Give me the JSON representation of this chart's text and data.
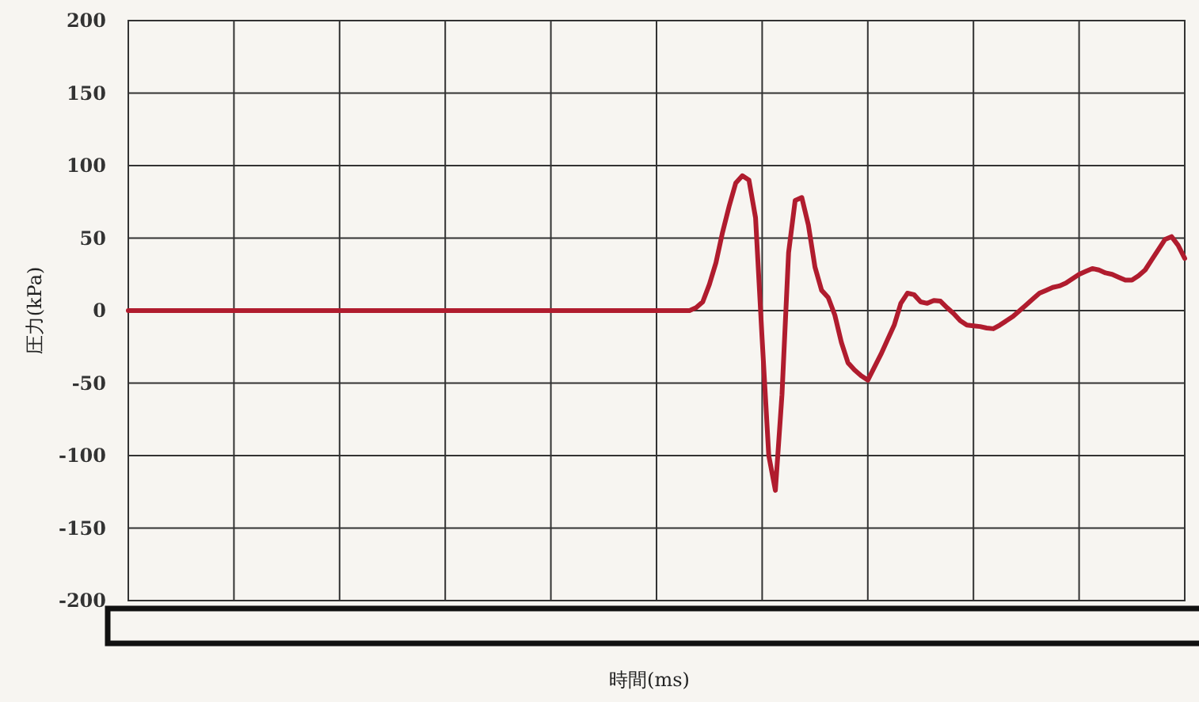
{
  "chart_data": {
    "type": "line",
    "xlabel": "時間(ms)",
    "ylabel": "圧力(kPa)",
    "categories": [
      null,
      null,
      null,
      null,
      null,
      null,
      null,
      null,
      null,
      null,
      null,
      null,
      null,
      null,
      null,
      null,
      null,
      null,
      null,
      null,
      null,
      null,
      null,
      null,
      null,
      null,
      null,
      null,
      null,
      null,
      null,
      null,
      null,
      null,
      null,
      null,
      null,
      null,
      null,
      null,
      null,
      null,
      null,
      null,
      null,
      null,
      null,
      null,
      null,
      null,
      null,
      null,
      null,
      null,
      null,
      null,
      null,
      null,
      null,
      null,
      null,
      null,
      null,
      null,
      null,
      null,
      null,
      null,
      null,
      null,
      null,
      null,
      null,
      null,
      null,
      null,
      null,
      null,
      null,
      null,
      null,
      null,
      null,
      null,
      null,
      null,
      null,
      null,
      null,
      null,
      null,
      null,
      null,
      null,
      null,
      null,
      null,
      null,
      null,
      null,
      null,
      null,
      null,
      null,
      null,
      null,
      null,
      null,
      null,
      null,
      null,
      null,
      null,
      null,
      null,
      null,
      null,
      null,
      null,
      null,
      null,
      null,
      null,
      null,
      null,
      null,
      null,
      null,
      null,
      null,
      null,
      null,
      null,
      null,
      null,
      null,
      null,
      null,
      null,
      null,
      null,
      null,
      null,
      null,
      null,
      null,
      null,
      null,
      null,
      null,
      null,
      null,
      null,
      null,
      null,
      null,
      null,
      null,
      null,
      null,
      null
    ],
    "series": [
      {
        "color": "#b01c2e",
        "values": [
          0,
          0,
          0,
          0,
          0,
          0,
          0,
          0,
          0,
          0,
          0,
          0,
          0,
          0,
          0,
          0,
          0,
          0,
          0,
          0,
          0,
          0,
          0,
          0,
          0,
          0,
          0,
          0,
          0,
          0,
          0,
          0,
          0,
          0,
          0,
          0,
          0,
          0,
          0,
          0,
          0,
          0,
          0,
          0,
          0,
          0,
          0,
          0,
          0,
          0,
          0,
          0,
          0,
          0,
          0,
          0,
          0,
          0,
          0,
          0,
          0,
          0,
          0,
          0,
          0,
          0,
          0,
          0,
          0,
          0,
          0,
          0,
          0,
          0,
          0,
          0,
          0,
          0,
          0,
          0,
          0,
          0,
          0,
          0,
          0,
          0,
          2,
          6,
          18,
          33,
          54,
          72,
          88,
          93,
          90,
          64,
          -20,
          -100,
          -124,
          -58,
          40,
          76,
          78,
          59,
          30,
          14,
          9,
          -3,
          -22,
          -36,
          -41,
          -45,
          -48,
          -39,
          -30,
          -20,
          -10,
          5,
          12,
          11,
          6,
          5,
          7,
          6.5,
          2,
          -2,
          -7,
          -10,
          -10.5,
          -11,
          -12,
          -12.5,
          -10,
          -7,
          -4,
          0,
          4,
          8,
          12,
          14,
          16,
          17,
          19,
          22,
          25,
          27,
          29,
          28,
          26,
          25,
          23,
          21,
          21,
          24,
          28,
          35,
          42,
          49,
          51,
          45,
          36
        ]
      }
    ],
    "ylim": [
      -200,
      200
    ],
    "yticks": [
      -200,
      -150,
      -100,
      -50,
      0,
      50,
      100,
      150,
      200
    ],
    "grid": true,
    "tick_labels": "y"
  }
}
